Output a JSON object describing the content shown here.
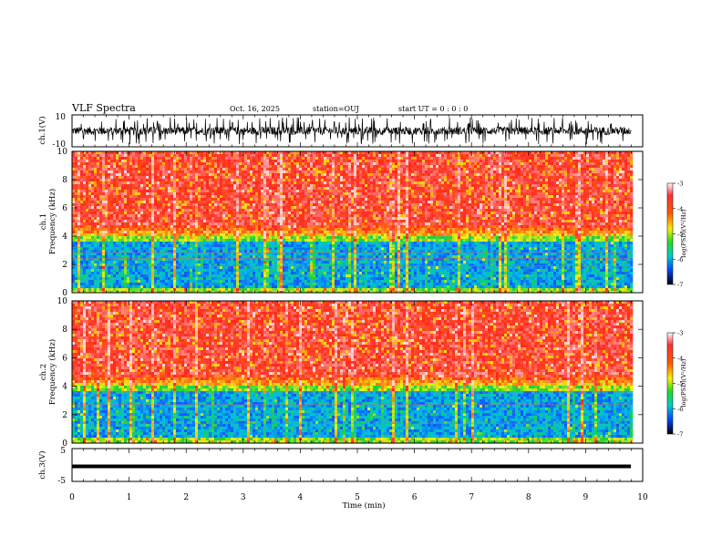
{
  "header": {
    "title": "VLF Spectra",
    "date": "Oct. 16, 2025",
    "station": "station=OUJ",
    "start": "start  UT =   0  : 0  : 0"
  },
  "chart_data": [
    {
      "type": "line",
      "panel": "ch1-waveform",
      "ylabel": "ch.1(V)",
      "ylim": [
        -10,
        10
      ],
      "yticks": [
        10,
        -10
      ],
      "x_range": [
        0,
        9.8
      ],
      "description_values": {
        "typical_upper": 3,
        "typical_lower": -3
      }
    },
    {
      "type": "heatmap",
      "panel": "ch1-spectrogram",
      "ylabel": "ch.1\nFrequency (kHz)",
      "ylim": [
        0,
        10
      ],
      "yticks": [
        0,
        2,
        4,
        6,
        8,
        10
      ],
      "x_range": [
        0,
        9.8
      ],
      "colorbar": {
        "label": "log(PSD)(V²/Hz)",
        "range": [
          -7,
          -3
        ],
        "ticks": [
          -3,
          -4,
          -5,
          -6,
          -7
        ]
      }
    },
    {
      "type": "heatmap",
      "panel": "ch2-spectrogram",
      "ylabel": "ch.2\nFrequency (kHz)",
      "ylim": [
        0,
        10
      ],
      "yticks": [
        0,
        2,
        4,
        6,
        8,
        10
      ],
      "x_range": [
        0,
        9.8
      ],
      "colorbar": {
        "label": "log(PSD)(V²/Hz)",
        "range": [
          -7,
          -3
        ],
        "ticks": [
          -3,
          -4,
          -5,
          -6,
          -7
        ]
      }
    },
    {
      "type": "line",
      "panel": "ch3-waveform",
      "ylabel": "ch.3(V)",
      "ylim": [
        -5,
        5
      ],
      "yticks": [
        5,
        0,
        -5
      ],
      "x_range": [
        0,
        9.8
      ],
      "values_constant": -2
    }
  ],
  "x_axis": {
    "label": "Time (min)",
    "range": [
      0,
      10
    ],
    "ticks": [
      "0",
      "1",
      "2",
      "3",
      "4",
      "5",
      "6",
      "7",
      "8",
      "9",
      "10"
    ]
  },
  "colors": {
    "spectro_high": "#ff2a1a",
    "spectro_mid": "#22cc22",
    "spectro_low": "#1a55ff",
    "spectro_min": "#0000cc"
  }
}
